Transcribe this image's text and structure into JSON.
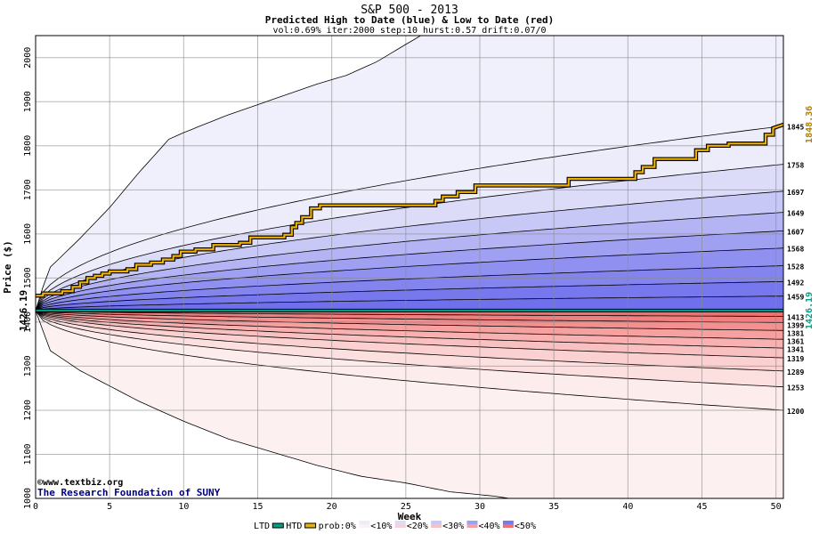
{
  "chart_data": {
    "type": "area",
    "title": "S&P 500 - 2013",
    "subtitle": "Predicted High to Date (blue) &  Low to Date (red)",
    "params": "vol:0.69% iter:2000 step:10 hurst:0.57 drift:0.07/0",
    "xlabel": "Week",
    "ylabel": "Price ($)",
    "xlim": [
      0,
      50.5
    ],
    "ylim": [
      1000,
      2050
    ],
    "x_ticks": [
      0,
      5,
      10,
      15,
      20,
      25,
      30,
      35,
      40,
      45,
      50
    ],
    "y_ticks": [
      1000,
      1100,
      1200,
      1300,
      1400,
      1500,
      1600,
      1700,
      1800,
      1900,
      2000
    ],
    "grid": true,
    "start_price": 1426.19,
    "start_label": "1426.19",
    "htd_end_value": 1848.36,
    "htd_end_label": "1848.36",
    "ltd_end_label": "1426.19",
    "high_band_ends": [
      1845,
      1758,
      1697,
      1649,
      1607,
      1568,
      1528,
      1492,
      1459
    ],
    "high_band_end_labels": [
      "1845",
      "1758",
      "1697",
      "1649",
      "1607",
      "1568",
      "1528",
      "1492",
      "1459"
    ],
    "low_band_ends": [
      1413,
      1399,
      1381,
      1361,
      1341,
      1319,
      1289,
      1253,
      1200
    ],
    "low_band_end_labels": [
      "1413",
      "1399",
      "1381",
      "1361",
      "1341",
      "1319",
      "1289",
      "1253",
      "1200"
    ],
    "envelope_high": [
      [
        0,
        1426
      ],
      [
        0.5,
        1480
      ],
      [
        1,
        1525
      ],
      [
        3,
        1590
      ],
      [
        5,
        1660
      ],
      [
        7,
        1740
      ],
      [
        9,
        1815
      ],
      [
        10,
        1830
      ],
      [
        13,
        1870
      ],
      [
        16,
        1905
      ],
      [
        19,
        1940
      ],
      [
        21,
        1960
      ],
      [
        23,
        1990
      ],
      [
        25,
        2030
      ],
      [
        26,
        2050
      ],
      [
        50.5,
        2050
      ]
    ],
    "envelope_low": [
      [
        0,
        1426
      ],
      [
        0.5,
        1380
      ],
      [
        1,
        1335
      ],
      [
        3,
        1290
      ],
      [
        5,
        1255
      ],
      [
        7,
        1220
      ],
      [
        10,
        1175
      ],
      [
        13,
        1135
      ],
      [
        16,
        1105
      ],
      [
        19,
        1075
      ],
      [
        22,
        1050
      ],
      [
        25,
        1035
      ],
      [
        28,
        1015
      ],
      [
        31,
        1005
      ],
      [
        32,
        1000
      ],
      [
        50.5,
        1000
      ]
    ],
    "htd_path": [
      [
        0,
        1460
      ],
      [
        0.5,
        1460
      ],
      [
        0.5,
        1465
      ],
      [
        1.8,
        1465
      ],
      [
        1.8,
        1470
      ],
      [
        2.5,
        1470
      ],
      [
        2.5,
        1480
      ],
      [
        3,
        1480
      ],
      [
        3,
        1490
      ],
      [
        3.5,
        1490
      ],
      [
        3.5,
        1500
      ],
      [
        4,
        1500
      ],
      [
        4,
        1505
      ],
      [
        4.5,
        1505
      ],
      [
        4.5,
        1510
      ],
      [
        5,
        1510
      ],
      [
        5,
        1515
      ],
      [
        6.2,
        1515
      ],
      [
        6.2,
        1520
      ],
      [
        6.8,
        1520
      ],
      [
        6.8,
        1530
      ],
      [
        7.8,
        1530
      ],
      [
        7.8,
        1535
      ],
      [
        8.6,
        1535
      ],
      [
        8.6,
        1542
      ],
      [
        9.3,
        1542
      ],
      [
        9.3,
        1550
      ],
      [
        9.8,
        1550
      ],
      [
        9.8,
        1560
      ],
      [
        10.8,
        1560
      ],
      [
        10.8,
        1565
      ],
      [
        12,
        1565
      ],
      [
        12,
        1575
      ],
      [
        13.8,
        1575
      ],
      [
        13.8,
        1580
      ],
      [
        14.5,
        1580
      ],
      [
        14.5,
        1592
      ],
      [
        16.8,
        1592
      ],
      [
        16.8,
        1598
      ],
      [
        17.3,
        1598
      ],
      [
        17.3,
        1615
      ],
      [
        17.6,
        1615
      ],
      [
        17.6,
        1625
      ],
      [
        18,
        1625
      ],
      [
        18,
        1638
      ],
      [
        18.6,
        1638
      ],
      [
        18.6,
        1658
      ],
      [
        19.2,
        1658
      ],
      [
        19.2,
        1665
      ],
      [
        27,
        1665
      ],
      [
        27,
        1675
      ],
      [
        27.5,
        1675
      ],
      [
        27.5,
        1685
      ],
      [
        28.5,
        1685
      ],
      [
        28.5,
        1695
      ],
      [
        29.7,
        1695
      ],
      [
        29.7,
        1710
      ],
      [
        36,
        1710
      ],
      [
        36,
        1725
      ],
      [
        40.5,
        1725
      ],
      [
        40.5,
        1740
      ],
      [
        41,
        1740
      ],
      [
        41,
        1752
      ],
      [
        41.8,
        1752
      ],
      [
        41.8,
        1770
      ],
      [
        44.6,
        1770
      ],
      [
        44.6,
        1790
      ],
      [
        45.4,
        1790
      ],
      [
        45.4,
        1800
      ],
      [
        46.8,
        1800
      ],
      [
        46.8,
        1805
      ],
      [
        49.3,
        1805
      ],
      [
        49.3,
        1825
      ],
      [
        49.8,
        1825
      ],
      [
        49.8,
        1840
      ],
      [
        50.5,
        1848
      ]
    ],
    "ltd_value": 1426.19,
    "watermark": "©www.textbiz.org",
    "credit": "The Research Foundation of SUNY",
    "legend": {
      "ltd": "LTD",
      "htd": "HTD",
      "prob": "prob:0%",
      "items": [
        "<10%",
        "<20%",
        "<30%",
        "<40%",
        "<50%"
      ]
    },
    "colors": {
      "blue_bands": [
        "#ececfa",
        "#dcdcf8",
        "#c8c8f6",
        "#b4b4f4",
        "#a0a0f2",
        "#9090f0",
        "#8484ee",
        "#7878ee",
        "#7070ec"
      ],
      "red_bands": [
        "#fcecec",
        "#fce0e0",
        "#fad0d0",
        "#f8c0c0",
        "#f8b0b0",
        "#f6a0a0",
        "#f49090",
        "#f08080",
        "#f07070"
      ],
      "htd": "#f0b000",
      "ltd": "#00a080",
      "text_orange": "#b08000",
      "text_green": "#00a080",
      "credit": "#000080"
    }
  }
}
